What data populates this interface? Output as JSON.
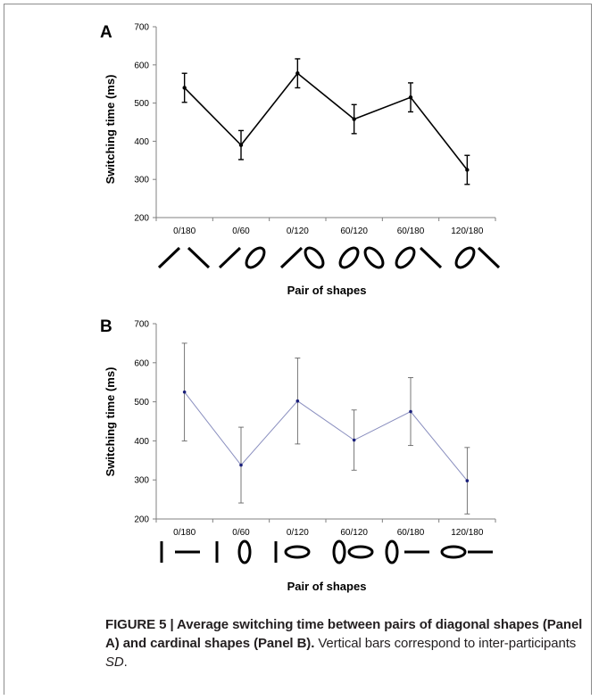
{
  "chart_data": [
    {
      "type": "line",
      "panel_label": "A",
      "categories": [
        "0/180",
        "0/60",
        "0/120",
        "60/120",
        "60/180",
        "120/180"
      ],
      "values": [
        540,
        390,
        578,
        458,
        515,
        325
      ],
      "error": [
        38,
        38,
        38,
        38,
        38,
        38
      ],
      "xlabel": "Pair of shapes",
      "ylabel": "Switching time (ms)",
      "ylim": [
        200,
        700
      ],
      "yticks": [
        "200",
        "300",
        "400",
        "500",
        "600",
        "700"
      ],
      "line_color": "#000000",
      "grid": false,
      "shapes": "diagonal"
    },
    {
      "type": "line",
      "panel_label": "B",
      "categories": [
        "0/180",
        "0/60",
        "0/120",
        "60/120",
        "60/180",
        "120/180"
      ],
      "values": [
        525,
        338,
        502,
        402,
        475,
        298
      ],
      "error": [
        125,
        97,
        110,
        77,
        87,
        85
      ],
      "xlabel": "Pair of shapes",
      "ylabel": "Switching time (ms)",
      "ylim": [
        200,
        700
      ],
      "yticks": [
        "200",
        "300",
        "400",
        "500",
        "600",
        "700"
      ],
      "line_color": "#8a8fbf",
      "grid": false,
      "shapes": "cardinal"
    }
  ],
  "caption": {
    "bold": "FIGURE 5 | Average switching time between pairs of diagonal shapes (Panel A) and cardinal shapes (Panel B).",
    "text_before_italic": " Vertical bars correspond to inter-participants ",
    "italic": "SD",
    "text_after_italic": "."
  }
}
